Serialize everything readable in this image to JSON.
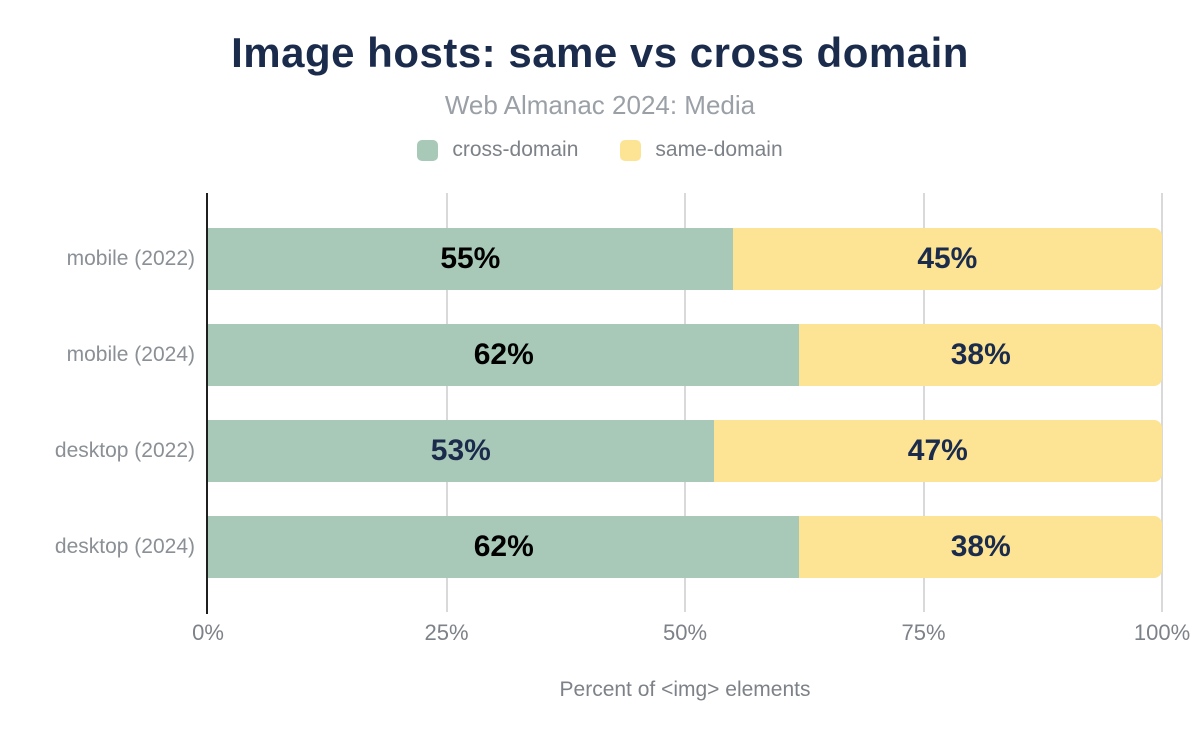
{
  "title": "Image hosts: same vs cross domain",
  "subtitle": "Web Almanac 2024: Media",
  "colors": {
    "title_navy": "#1b2b4c",
    "cross_domain_green": "#a8c9b8",
    "same_domain_yellow": "#fde394",
    "gridline_gray": "#d9d9d9",
    "axis_black": "#1f1f1f",
    "text_gray": "#7d8288"
  },
  "chart_data": {
    "type": "bar",
    "orientation": "horizontal",
    "stacked": true,
    "title": "Image hosts: same vs cross domain",
    "subtitle": "Web Almanac 2024: Media",
    "categories": [
      "mobile (2022)",
      "mobile (2024)",
      "desktop (2022)",
      "desktop (2024)"
    ],
    "series": [
      {
        "name": "cross-domain",
        "color": "#a8c9b8",
        "values": [
          55,
          62,
          53,
          62
        ],
        "label_colors": [
          "#000000",
          "#000000",
          "#1b2b4c",
          "#000000"
        ]
      },
      {
        "name": "same-domain",
        "color": "#fde394",
        "values": [
          45,
          38,
          47,
          38
        ],
        "label_colors": [
          "#1b2b4c",
          "#1b2b4c",
          "#1b2b4c",
          "#1b2b4c"
        ]
      }
    ],
    "value_suffix": "%",
    "xlabel": "Percent of <img> elements",
    "xlim": [
      0,
      100
    ],
    "x_ticks": [
      {
        "label": "0%",
        "value": 0
      },
      {
        "label": "25%",
        "value": 25
      },
      {
        "label": "50%",
        "value": 50
      },
      {
        "label": "75%",
        "value": 75
      },
      {
        "label": "100%",
        "value": 100
      }
    ],
    "grid": "vertical",
    "legend_position": "top"
  }
}
